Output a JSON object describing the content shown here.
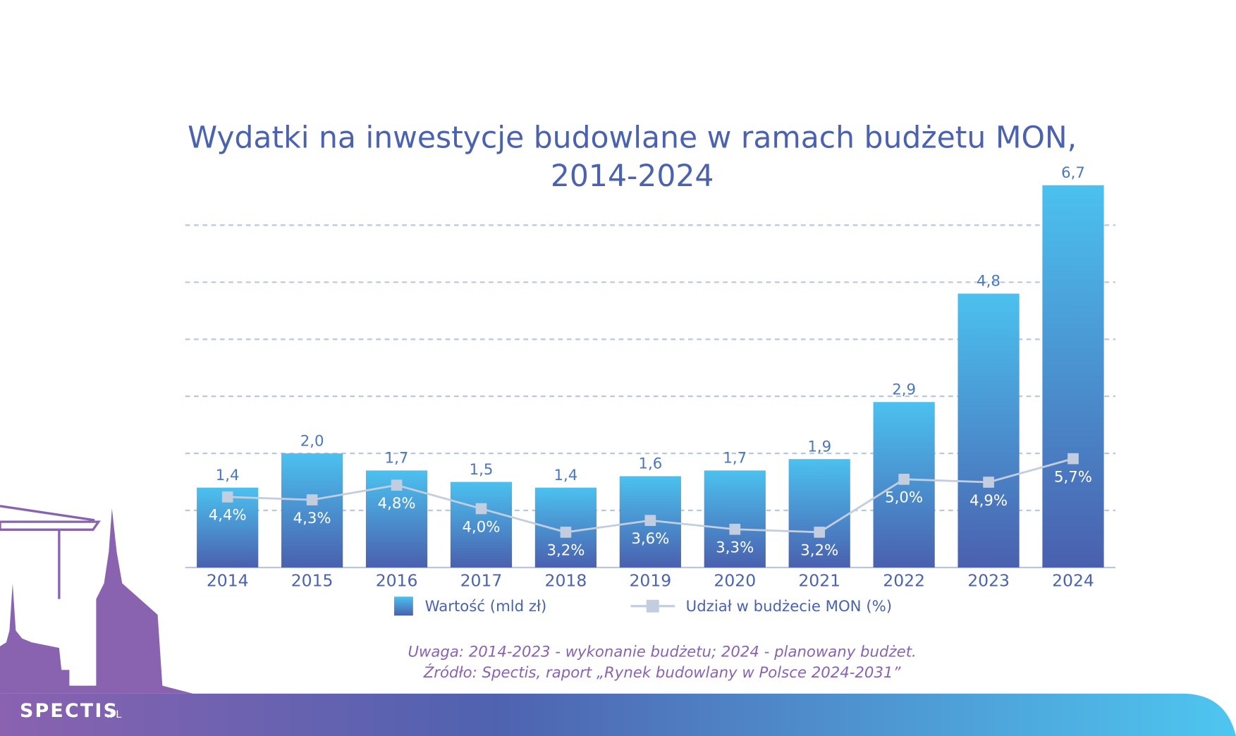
{
  "chart_data": {
    "type": "bar-line",
    "title": "Wydatki na inwestycje budowlane w ramach budżetu MON,",
    "subtitle": "2014-2024",
    "categories": [
      "2014",
      "2015",
      "2016",
      "2017",
      "2018",
      "2019",
      "2020",
      "2021",
      "2022",
      "2023",
      "2024"
    ],
    "series": [
      {
        "name": "Wartość (mld zł)",
        "color": "#4a74c4",
        "type": "bar",
        "values": [
          1.4,
          2.0,
          1.7,
          1.5,
          1.4,
          1.6,
          1.7,
          1.9,
          2.9,
          4.8,
          6.7
        ],
        "value_labels": [
          "1,4",
          "2,0",
          "1,7",
          "1,5",
          "1,4",
          "1,6",
          "1,7",
          "1,9",
          "2,9",
          "4,8",
          "6,7"
        ]
      },
      {
        "name": "Udział w budżecie MON (%)",
        "color": "#c3cde0",
        "type": "line",
        "axis": "y2",
        "values": [
          4.4,
          4.3,
          4.8,
          4.0,
          3.2,
          3.6,
          3.3,
          3.2,
          5.0,
          4.9,
          5.7
        ],
        "value_labels": [
          "4,4%",
          "4,3%",
          "4,8%",
          "4,0%",
          "3,2%",
          "3,6%",
          "3,3%",
          "3,2%",
          "5,0%",
          "4,9%",
          "5,7%"
        ]
      }
    ],
    "ylim": [
      0,
      6.7
    ],
    "yticks": [
      0,
      1,
      2,
      3,
      4,
      5,
      6
    ],
    "y2lim": [
      2,
      15
    ],
    "grid": true,
    "note": "Uwaga: 2014-2023 - wykonanie budżetu; 2024 - planowany budżet.",
    "source": "Źródło: Spectis, raport „Rynek budowlany w Polsce 2024-2031”"
  },
  "logo": {
    "name": "SPECTIS",
    "suffix": ".PL"
  }
}
